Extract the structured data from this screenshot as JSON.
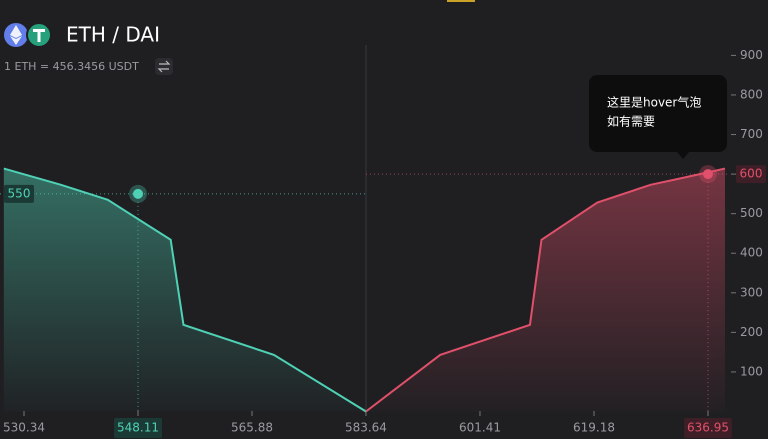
{
  "chart_data": {
    "type": "depth",
    "title": "ETH / DAI",
    "subtitle": "1 ETH = 456.3456 USDT",
    "xlim": [
      526.6,
      639.6
    ],
    "ylim": [
      0,
      1040
    ],
    "xticks": [
      530.34,
      548.11,
      565.88,
      583.64,
      601.41,
      619.18,
      636.95
    ],
    "yticks": [
      100,
      200,
      300,
      400,
      500,
      600,
      700,
      800,
      900
    ],
    "series": [
      {
        "color": "#4fd1b5",
        "x": [
          527.2,
          536.1,
          543.4,
          553.2,
          555.2,
          569.3,
          583.64
        ],
        "values": [
          614,
          573,
          535,
          434,
          219,
          143,
          0
        ]
      },
      {
        "color": "#e0506a",
        "x": [
          583.64,
          595.2,
          609.2,
          611.0,
          619.7,
          628.0,
          633.2,
          639.6
        ],
        "values": [
          0,
          143,
          219,
          434,
          528,
          573,
          591,
          614
        ]
      }
    ],
    "hover": [
      {
        "x": 548.11,
        "y": 550
      },
      {
        "x": 636.95,
        "y": 600
      }
    ],
    "tooltip": [
      "这里是hover气泡",
      "如有需要"
    ]
  }
}
